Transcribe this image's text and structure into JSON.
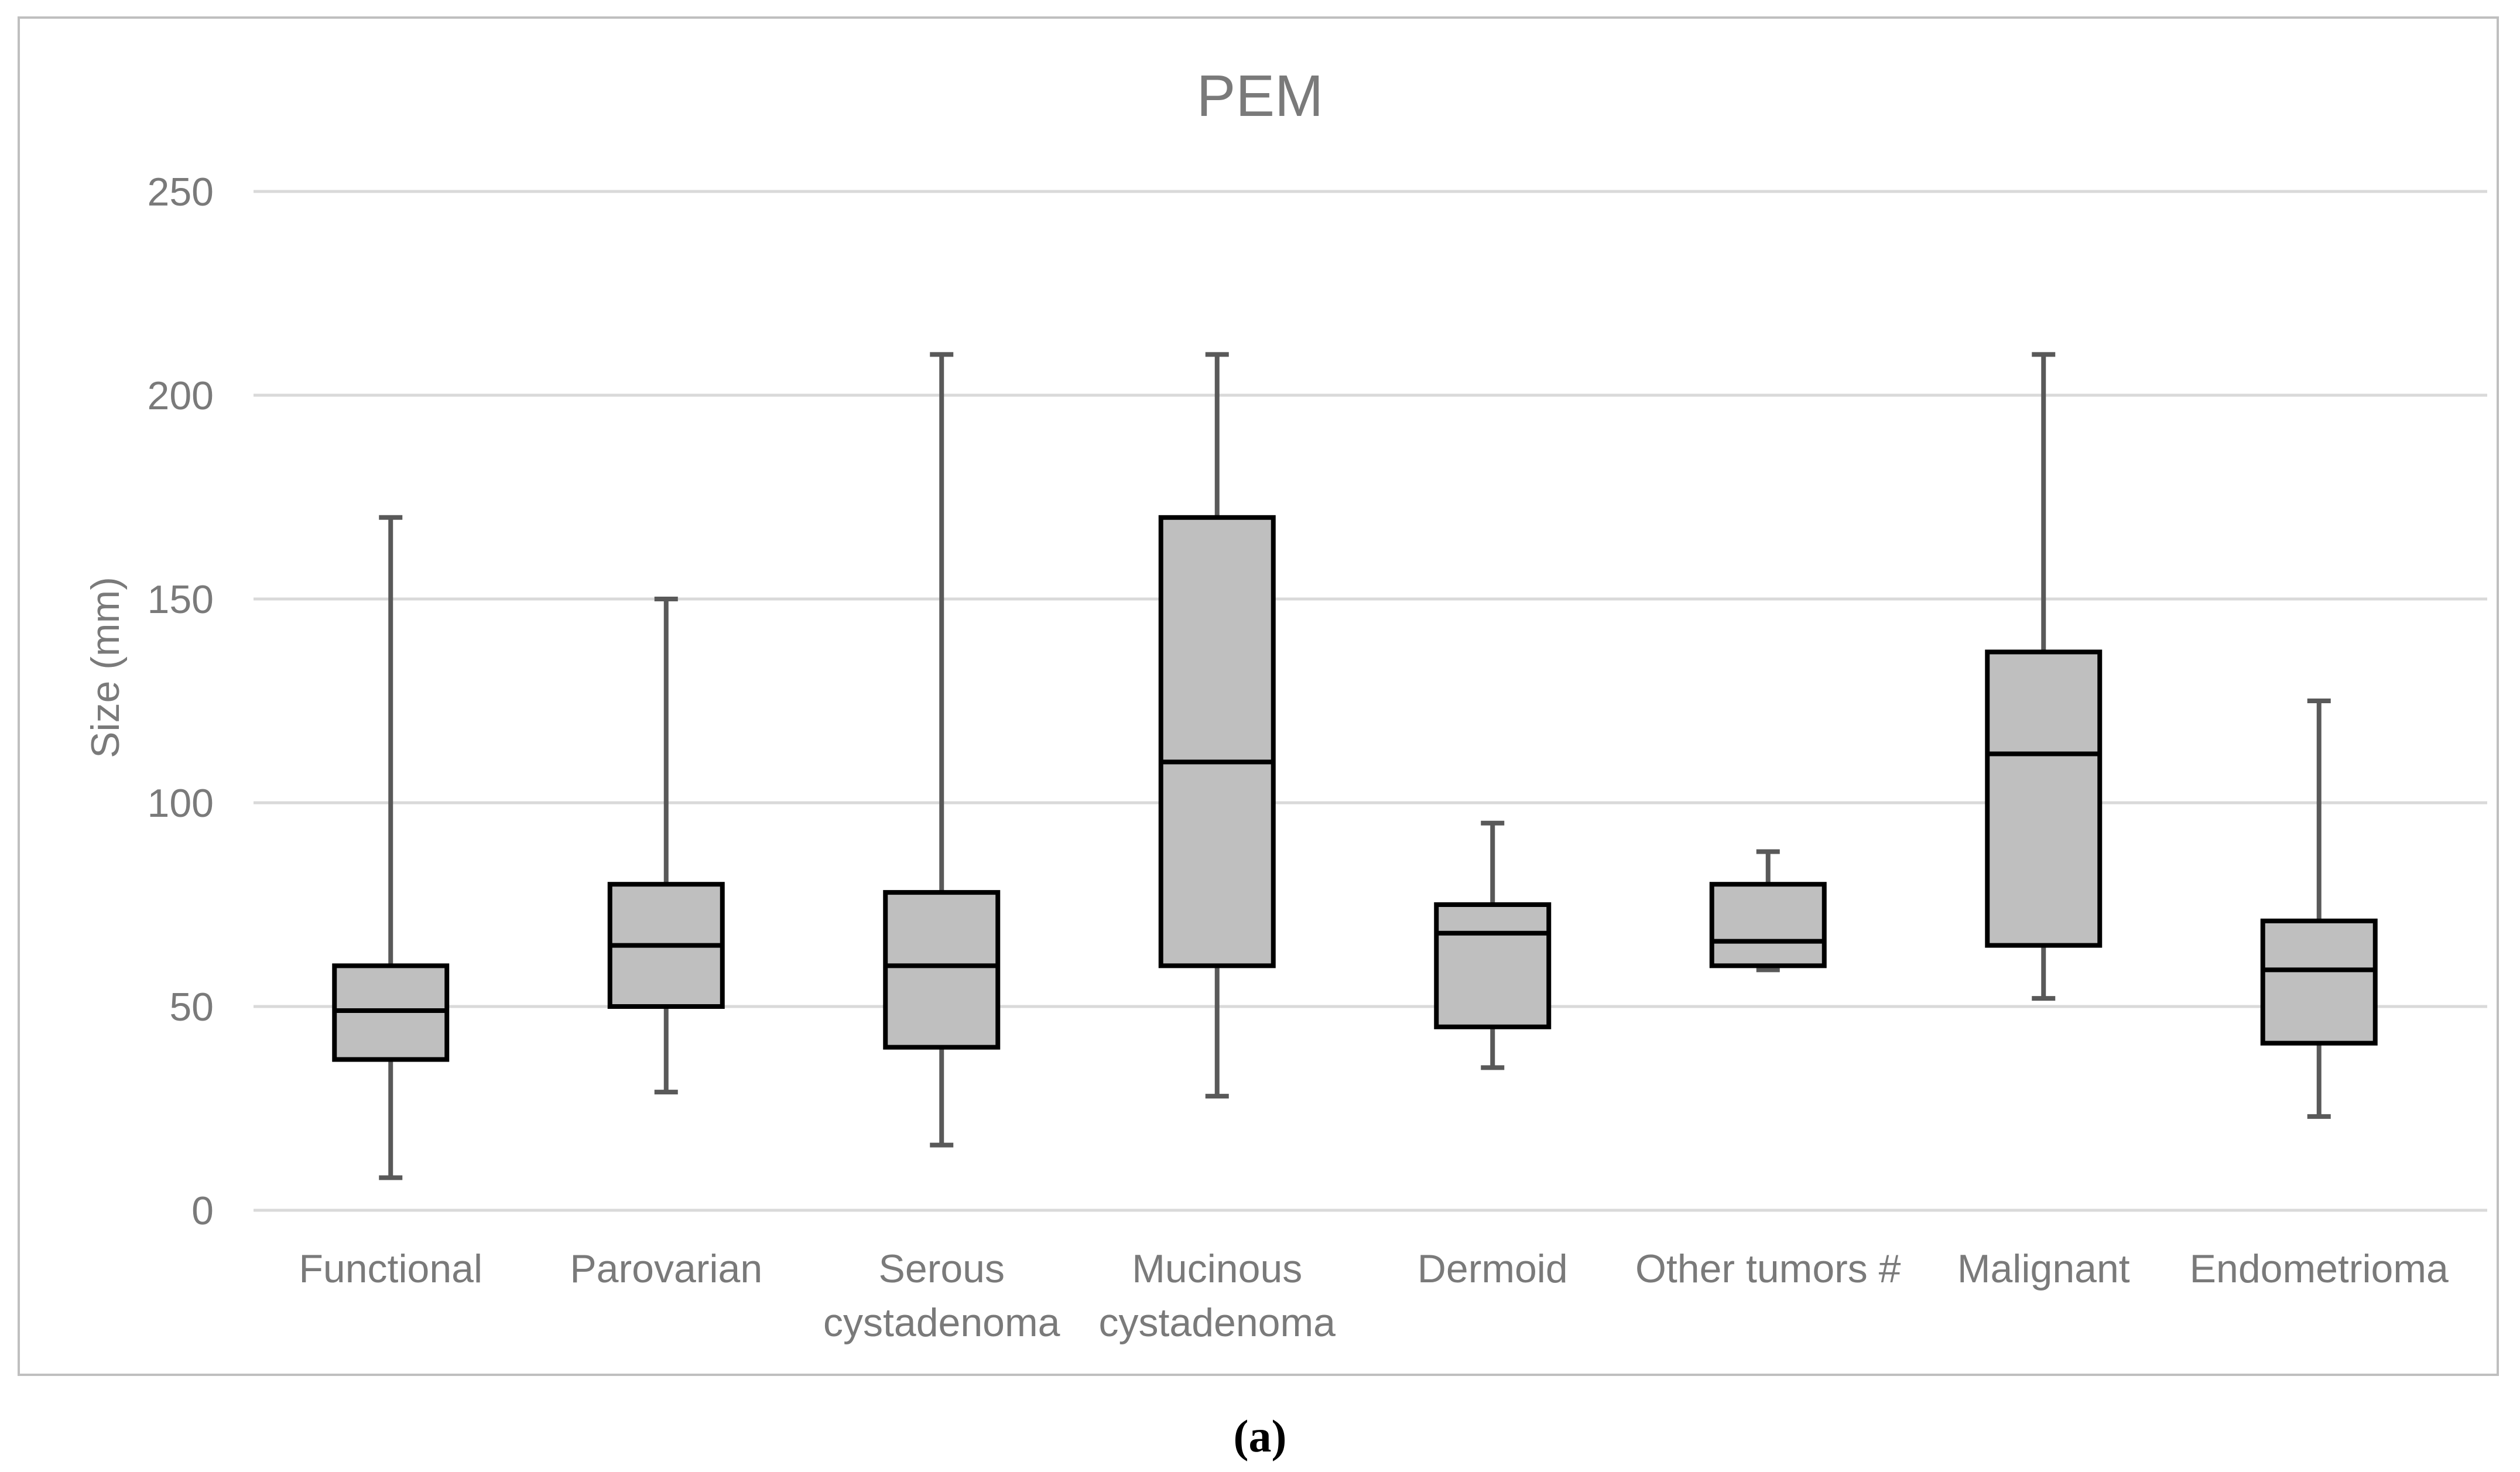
{
  "figure": {
    "caption": "(a)"
  },
  "chart_data": {
    "type": "box",
    "title": "PEM",
    "xlabel": "",
    "ylabel": "Size (mm)",
    "ylim": [
      0,
      250
    ],
    "yticks": [
      0,
      50,
      100,
      150,
      200,
      250
    ],
    "grid": true,
    "legend": "none",
    "categories": [
      "Functional",
      "Parovarian",
      "Serous cystadenoma",
      "Mucinous cystadenoma",
      "Dermoid",
      "Other tumors #",
      "Malignant",
      "Endometrioma"
    ],
    "category_label_lines": [
      [
        "Functional"
      ],
      [
        "Parovarian"
      ],
      [
        "Serous",
        "cystadenoma"
      ],
      [
        "Mucinous",
        "cystadenoma"
      ],
      [
        "Dermoid"
      ],
      [
        "Other tumors #"
      ],
      [
        "Malignant"
      ],
      [
        "Endometrioma"
      ]
    ],
    "series": [
      {
        "name": "Functional",
        "min": 8,
        "q1": 37,
        "median": 49,
        "q3": 60,
        "max": 170
      },
      {
        "name": "Parovarian",
        "min": 29,
        "q1": 50,
        "median": 65,
        "q3": 80,
        "max": 150
      },
      {
        "name": "Serous cystadenoma",
        "min": 16,
        "q1": 40,
        "median": 60,
        "q3": 78,
        "max": 210
      },
      {
        "name": "Mucinous cystadenoma",
        "min": 28,
        "q1": 60,
        "median": 110,
        "q3": 170,
        "max": 210
      },
      {
        "name": "Dermoid",
        "min": 35,
        "q1": 45,
        "median": 68,
        "q3": 75,
        "max": 95
      },
      {
        "name": "Other tumors #",
        "min": 59,
        "q1": 60,
        "median": 66,
        "q3": 80,
        "max": 88
      },
      {
        "name": "Malignant",
        "min": 52,
        "q1": 65,
        "median": 112,
        "q3": 137,
        "max": 210
      },
      {
        "name": "Endometrioma",
        "min": 23,
        "q1": 41,
        "median": 59,
        "q3": 71,
        "max": 125
      }
    ],
    "colors": {
      "box_fill": "#bfbfbf",
      "box_border": "#000000",
      "median": "#000000",
      "whisker": "#595959",
      "gridline": "#d9d9d9",
      "frame": "#bfbfbf",
      "text": "#7a7a7a",
      "caption": "#000000",
      "background": "#ffffff"
    }
  }
}
